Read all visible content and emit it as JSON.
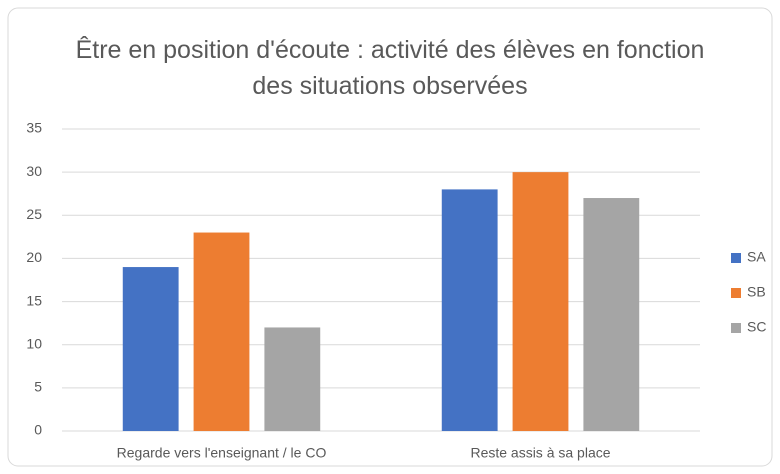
{
  "chart_data": {
    "type": "bar",
    "title": "Être en position d'écoute : activité des élèves en fonction des situations observées",
    "categories": [
      "Regarde vers l'enseignant / le CO",
      "Reste assis à sa place"
    ],
    "series": [
      {
        "name": "SA",
        "color": "#4472c4",
        "values": [
          19,
          28
        ]
      },
      {
        "name": "SB",
        "color": "#ed7d31",
        "values": [
          23,
          30
        ]
      },
      {
        "name": "SC",
        "color": "#a5a5a5",
        "values": [
          12,
          27
        ]
      }
    ],
    "ylim": [
      0,
      35
    ],
    "yticks": [
      0,
      5,
      10,
      15,
      20,
      25,
      30,
      35
    ],
    "grid": true,
    "legend": "right"
  }
}
